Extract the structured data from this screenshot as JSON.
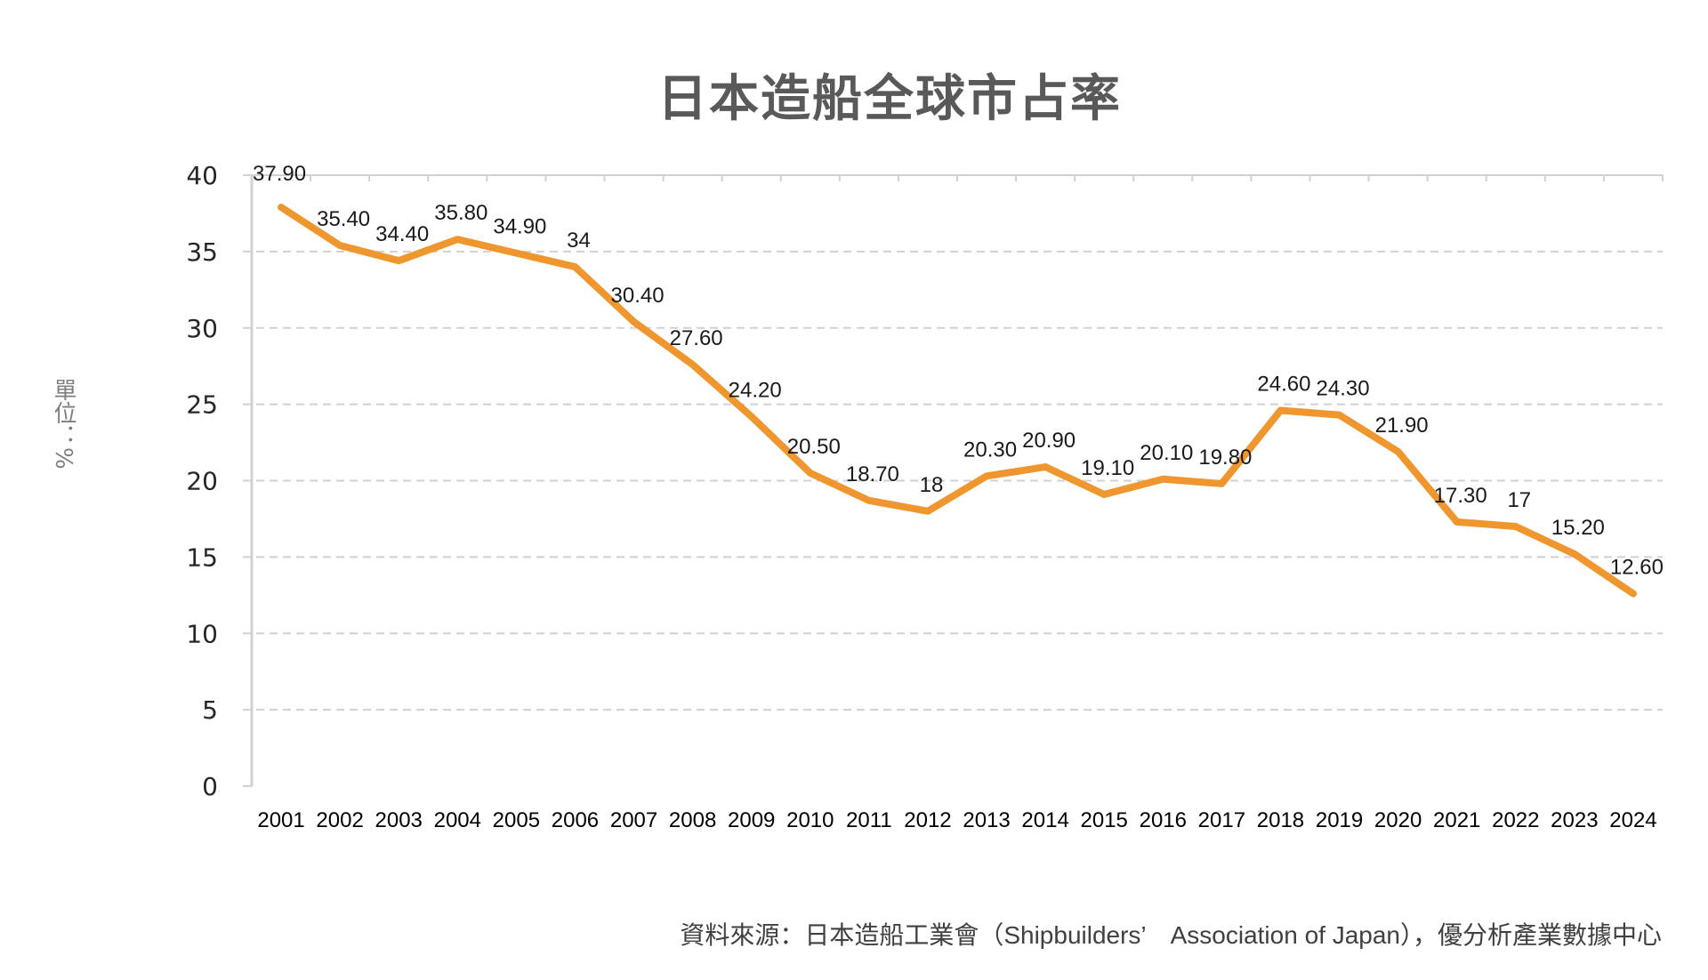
{
  "chart_data": {
    "type": "line",
    "title": "日本造船全球市占率",
    "ylabel": "單位：%",
    "xlabel": "",
    "categories": [
      "2001",
      "2002",
      "2003",
      "2004",
      "2005",
      "2006",
      "2007",
      "2008",
      "2009",
      "2010",
      "2011",
      "2012",
      "2013",
      "2014",
      "2015",
      "2016",
      "2017",
      "2018",
      "2019",
      "2020",
      "2021",
      "2022",
      "2023",
      "2024"
    ],
    "series": [
      {
        "values": [
          37.9,
          35.4,
          34.4,
          35.8,
          34.9,
          34,
          30.4,
          27.6,
          24.2,
          20.5,
          18.7,
          18,
          20.3,
          20.9,
          19.1,
          20.1,
          19.8,
          24.6,
          24.3,
          21.9,
          17.3,
          17,
          15.2,
          12.6
        ],
        "labels": [
          "37.90",
          "35.40",
          "34.40",
          "35.80",
          "34.90",
          "34",
          "30.40",
          "27.60",
          "24.20",
          "20.50",
          "18.70",
          "18",
          "20.30",
          "20.90",
          "19.10",
          "20.10",
          "19.80",
          "24.60",
          "24.30",
          "21.90",
          "17.30",
          "17",
          "15.20",
          "12.60"
        ],
        "color": "#F0962E"
      }
    ],
    "ylim": [
      0,
      40
    ],
    "yticks": [
      "0",
      "5",
      "10",
      "15",
      "20",
      "25",
      "30",
      "35",
      "40"
    ],
    "grid": "horizontal dashed",
    "legend": "none",
    "source": "資料來源：日本造船工業會（Shipbuilders’　Association of Japan），優分析產業數據中心"
  }
}
